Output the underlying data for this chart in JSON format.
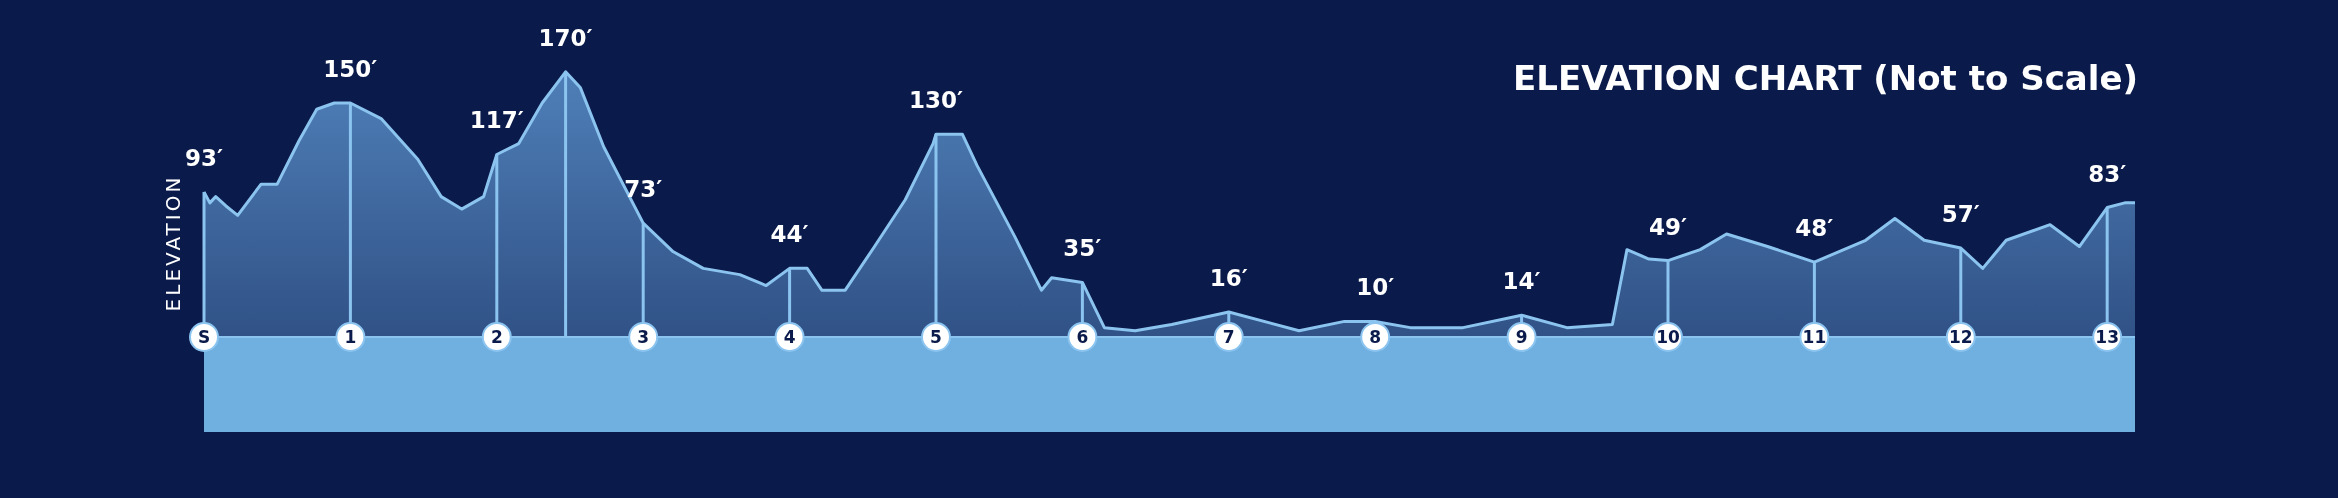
{
  "chart_data": {
    "type": "area",
    "title": "ELEVATION CHART (Not to Scale)",
    "ylabel": "ELEVATION",
    "color": "#4f7fb8",
    "xlim": [
      0,
      13.19
    ],
    "xticks": [
      {
        "value": 0,
        "label": "S"
      },
      {
        "value": 1,
        "label": "1"
      },
      {
        "value": 2,
        "label": "2"
      },
      {
        "value": 3,
        "label": "3"
      },
      {
        "value": 4,
        "label": "4"
      },
      {
        "value": 5,
        "label": "5"
      },
      {
        "value": 6,
        "label": "6"
      },
      {
        "value": 7,
        "label": "7"
      },
      {
        "value": 8,
        "label": "8"
      },
      {
        "value": 9,
        "label": "9"
      },
      {
        "value": 10,
        "label": "10"
      },
      {
        "value": 11,
        "label": "11"
      },
      {
        "value": 12,
        "label": "12"
      },
      {
        "value": 13,
        "label": "13"
      }
    ],
    "x": [
      0,
      0.04,
      0.08,
      0.15,
      0.23,
      0.39,
      0.5,
      0.65,
      0.77,
      0.89,
      1,
      1.21,
      1.46,
      1.62,
      1.76,
      1.91,
      2,
      2.15,
      2.31,
      2.47,
      2.57,
      2.73,
      3,
      3.2,
      3.41,
      3.66,
      3.84,
      4,
      4.12,
      4.22,
      4.38,
      4.58,
      4.79,
      4.98,
      5,
      5.18,
      5.28,
      5.54,
      5.72,
      5.79,
      6,
      6.15,
      6.36,
      6.61,
      7,
      7.48,
      7.79,
      8,
      8.24,
      8.6,
      9,
      9.31,
      9.62,
      9.72,
      9.87,
      10,
      10.22,
      10.4,
      10.68,
      11,
      11.35,
      11.55,
      11.75,
      12,
      12.15,
      12.31,
      12.61,
      12.81,
      13,
      13.12,
      13.19
    ],
    "values": [
      93,
      86,
      90,
      84,
      78,
      98,
      98,
      126,
      146,
      150,
      150,
      140,
      114,
      90,
      82,
      90,
      117,
      124,
      150,
      170,
      160,
      122,
      73,
      55,
      44,
      40,
      33,
      44,
      44,
      30,
      30,
      58,
      88,
      124,
      130,
      130,
      110,
      64,
      30,
      38,
      35,
      6,
      4,
      8,
      16,
      4,
      10,
      10,
      6,
      6,
      14,
      6,
      8,
      56,
      50,
      49,
      56,
      66,
      58,
      48,
      62,
      76,
      62,
      57,
      44,
      62,
      72,
      58,
      83,
      86,
      86
    ],
    "value_labels": [
      "93′",
      null,
      null,
      null,
      null,
      null,
      null,
      null,
      null,
      null,
      "150′",
      null,
      null,
      null,
      null,
      null,
      "117′",
      null,
      null,
      "170′",
      null,
      null,
      "73′",
      null,
      null,
      null,
      null,
      "44′",
      null,
      null,
      null,
      null,
      null,
      null,
      "130′",
      null,
      null,
      null,
      null,
      null,
      "35′",
      null,
      null,
      null,
      "16′",
      null,
      null,
      "10′",
      null,
      null,
      "14′",
      null,
      null,
      null,
      null,
      "49′",
      null,
      null,
      null,
      "48′",
      null,
      null,
      null,
      "57′",
      null,
      null,
      null,
      null,
      "83′",
      null,
      null
    ]
  }
}
